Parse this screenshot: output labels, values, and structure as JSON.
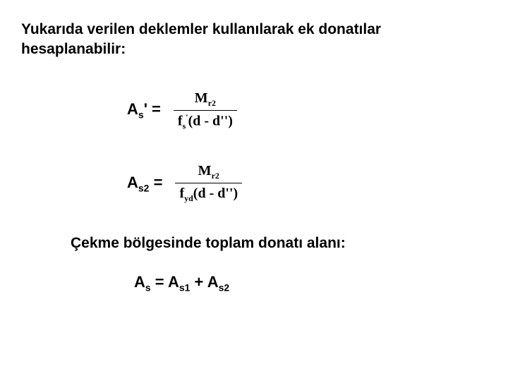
{
  "intro_line1": "Yukarıda verilen deklemler kullanılarak ek donatılar",
  "intro_line2": "hesaplanabilir:",
  "eq1": {
    "lhs_base": "A",
    "lhs_sub": "s",
    "lhs_prime": "'",
    "equals": " =",
    "num_base": "M",
    "num_sub": "r2",
    "den_f": "f",
    "den_f_sub": "s",
    "den_f_sup": "'",
    "den_paren": "(d - d'')"
  },
  "eq2": {
    "lhs_base": "A",
    "lhs_sub": "s2",
    "equals": " =",
    "num_base": "M",
    "num_sub": "r2",
    "den_f": "f",
    "den_f_sub": "yd",
    "den_paren": "(d - d'')"
  },
  "section": "Çekme bölgesinde toplam donatı alanı:",
  "final": {
    "A": "A",
    "s": "s",
    "eq": " = ",
    "A1": "A",
    "s1": "s1",
    "plus": " + ",
    "A2": "A",
    "s2": "s2"
  }
}
